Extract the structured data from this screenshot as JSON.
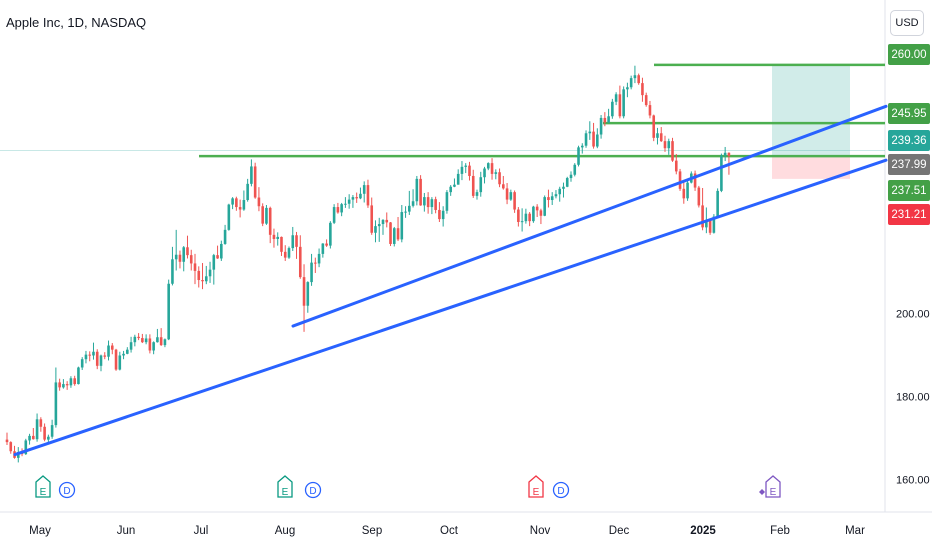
{
  "header": {
    "title": "Apple Inc, 1D, NASDAQ",
    "currency": "USD"
  },
  "colors": {
    "up": "#26a69a",
    "down": "#ef5350",
    "trendline": "#2962ff",
    "level": "#4caf50",
    "profit_zone": "#b2dfdb",
    "loss_zone": "#ffcdd2"
  },
  "chart_data": {
    "type": "candlestick",
    "ylim": [
      156,
      266
    ],
    "grid": false,
    "x_ticks": [
      "May",
      "Jun",
      "Jul",
      "Aug",
      "Sep",
      "Oct",
      "Nov",
      "Dec",
      "2025",
      "Feb",
      "Mar"
    ],
    "y_ticks": [
      "160.00",
      "180.00",
      "200.00"
    ],
    "price_labels": [
      "260.00",
      "245.95",
      "239.36",
      "237.99",
      "237.51",
      "231.21"
    ],
    "horizontal_levels": [
      {
        "value": 260.0,
        "from": "Dec",
        "to": "Feb"
      },
      {
        "value": 245.95,
        "from": "Dec",
        "to": "Feb"
      },
      {
        "value": 237.99,
        "from": "Jul",
        "to": "Feb"
      }
    ],
    "trend_lines": [
      {
        "from": {
          "date": "Apr 19",
          "price": 166
        },
        "to": {
          "date": "Mar",
          "price": 237
        }
      },
      {
        "from": {
          "date": "Aug 5",
          "price": 197
        },
        "to": {
          "date": "Mar",
          "price": 250
        }
      }
    ],
    "position_zones": {
      "entry": 237.99,
      "target": 260.0,
      "stop": 232.5
    },
    "events": [
      "E",
      "D",
      "E",
      "D",
      "E",
      "D",
      "E"
    ],
    "candles": [
      [
        169.6,
        171.3,
        168.3,
        169.0
      ],
      [
        169.0,
        169.2,
        166.2,
        166.8
      ],
      [
        166.8,
        168.1,
        165.0,
        165.2
      ],
      [
        165.2,
        167.8,
        164.1,
        166.6
      ],
      [
        166.6,
        167.5,
        165.6,
        166.1
      ],
      [
        166.1,
        169.8,
        165.9,
        169.4
      ],
      [
        169.4,
        171.0,
        168.4,
        170.5
      ],
      [
        170.5,
        172.4,
        169.6,
        169.7
      ],
      [
        169.7,
        175.9,
        169.1,
        174.5
      ],
      [
        174.5,
        175.0,
        171.5,
        172.7
      ],
      [
        172.7,
        173.5,
        169.2,
        169.6
      ],
      [
        169.6,
        170.8,
        168.7,
        170.3
      ],
      [
        170.3,
        174.4,
        169.8,
        173.1
      ],
      [
        173.1,
        187.0,
        172.5,
        183.4
      ],
      [
        183.4,
        184.3,
        181.4,
        182.2
      ],
      [
        182.2,
        184.2,
        181.9,
        183.0
      ],
      [
        183.0,
        183.7,
        181.6,
        182.7
      ],
      [
        182.7,
        184.9,
        182.1,
        184.4
      ],
      [
        184.4,
        185.0,
        182.6,
        183.0
      ],
      [
        183.0,
        187.2,
        182.9,
        187.0
      ],
      [
        187.0,
        189.5,
        186.4,
        189.0
      ],
      [
        189.0,
        191.0,
        188.0,
        190.1
      ],
      [
        190.1,
        190.9,
        188.5,
        189.9
      ],
      [
        189.9,
        193.0,
        188.9,
        190.8
      ],
      [
        190.8,
        191.4,
        186.6,
        187.4
      ],
      [
        187.4,
        190.1,
        186.1,
        189.9
      ],
      [
        189.9,
        190.7,
        189.0,
        189.6
      ],
      [
        189.6,
        193.5,
        188.7,
        192.3
      ],
      [
        192.3,
        192.9,
        190.2,
        191.3
      ],
      [
        191.3,
        191.5,
        186.2,
        186.5
      ],
      [
        186.5,
        190.8,
        186.3,
        189.9
      ],
      [
        189.9,
        191.0,
        189.0,
        190.3
      ],
      [
        190.3,
        191.9,
        190.2,
        191.3
      ],
      [
        191.3,
        194.4,
        190.6,
        193.1
      ],
      [
        193.1,
        194.9,
        192.1,
        194.4
      ],
      [
        194.4,
        195.3,
        193.6,
        194.1
      ],
      [
        194.1,
        195.1,
        192.9,
        193.1
      ],
      [
        193.1,
        195.0,
        192.6,
        194.0
      ],
      [
        194.0,
        195.0,
        190.4,
        191.1
      ],
      [
        191.1,
        193.3,
        190.2,
        193.1
      ],
      [
        193.1,
        196.3,
        193.0,
        194.3
      ],
      [
        194.3,
        196.5,
        192.2,
        192.4
      ],
      [
        192.4,
        194.0,
        191.9,
        193.8
      ],
      [
        193.8,
        208.2,
        193.6,
        207.2
      ],
      [
        207.2,
        216.1,
        206.8,
        213.1
      ],
      [
        213.1,
        220.2,
        210.4,
        214.2
      ],
      [
        214.2,
        215.2,
        210.9,
        212.5
      ],
      [
        212.5,
        216.3,
        210.2,
        216.0
      ],
      [
        216.0,
        218.8,
        213.3,
        214.1
      ],
      [
        214.1,
        215.4,
        210.4,
        212.1
      ],
      [
        212.1,
        214.4,
        207.1,
        210.3
      ],
      [
        210.3,
        211.4,
        206.3,
        208.1
      ],
      [
        208.1,
        212.2,
        205.9,
        207.8
      ],
      [
        207.8,
        211.5,
        207.1,
        209.0
      ],
      [
        209.0,
        212.5,
        207.4,
        210.6
      ],
      [
        210.6,
        214.4,
        207.0,
        214.1
      ],
      [
        214.1,
        216.4,
        213.2,
        213.3
      ],
      [
        213.3,
        217.6,
        212.7,
        216.8
      ],
      [
        216.8,
        221.4,
        216.6,
        220.2
      ],
      [
        220.2,
        226.5,
        220.0,
        226.3
      ],
      [
        226.3,
        228.1,
        225.2,
        227.8
      ],
      [
        227.8,
        228.2,
        224.8,
        225.7
      ],
      [
        225.7,
        227.5,
        223.2,
        225.1
      ],
      [
        225.1,
        229.7,
        224.8,
        227.4
      ],
      [
        227.4,
        232.5,
        227.0,
        231.3
      ],
      [
        231.3,
        237.2,
        230.7,
        235.5
      ],
      [
        235.5,
        236.4,
        227.7,
        228.0
      ],
      [
        228.0,
        230.5,
        224.7,
        225.9
      ],
      [
        225.9,
        226.6,
        221.1,
        221.7
      ],
      [
        221.7,
        226.2,
        221.4,
        225.5
      ],
      [
        225.5,
        225.8,
        217.0,
        219.0
      ],
      [
        219.0,
        220.5,
        215.9,
        218.0
      ],
      [
        218.0,
        219.6,
        216.4,
        218.5
      ],
      [
        218.5,
        218.6,
        213.9,
        214.9
      ],
      [
        214.9,
        216.5,
        212.7,
        213.5
      ],
      [
        213.5,
        216.2,
        213.2,
        215.8
      ],
      [
        215.8,
        220.9,
        215.1,
        218.9
      ],
      [
        218.9,
        219.7,
        213.2,
        216.1
      ],
      [
        216.1,
        218.9,
        208.4,
        208.8
      ],
      [
        208.8,
        211.9,
        195.6,
        201.9
      ],
      [
        201.9,
        207.8,
        200.2,
        207.6
      ],
      [
        207.6,
        214.4,
        206.7,
        212.3
      ],
      [
        212.3,
        213.5,
        209.8,
        212.1
      ],
      [
        212.1,
        215.7,
        211.2,
        214.4
      ],
      [
        214.4,
        217.0,
        213.5,
        216.9
      ],
      [
        216.9,
        217.9,
        216.1,
        216.4
      ],
      [
        216.4,
        222.3,
        215.7,
        221.9
      ],
      [
        221.9,
        226.4,
        221.6,
        225.7
      ],
      [
        225.7,
        226.7,
        224.1,
        224.4
      ],
      [
        224.4,
        226.7,
        223.5,
        226.4
      ],
      [
        226.4,
        228.1,
        225.5,
        226.5
      ],
      [
        226.5,
        228.8,
        225.3,
        227.5
      ],
      [
        227.5,
        228.6,
        225.5,
        228.1
      ],
      [
        228.1,
        229.2,
        226.7,
        227.8
      ],
      [
        227.8,
        230.4,
        227.6,
        228.9
      ],
      [
        228.9,
        231.9,
        226.8,
        231.0
      ],
      [
        231.0,
        232.3,
        225.5,
        226.1
      ],
      [
        226.1,
        228.0,
        219.0,
        219.5
      ],
      [
        219.5,
        222.5,
        217.2,
        221.1
      ],
      [
        221.1,
        223.1,
        217.3,
        221.6
      ],
      [
        221.6,
        222.8,
        219.0,
        222.6
      ],
      [
        222.6,
        224.4,
        220.8,
        222.0
      ],
      [
        222.0,
        222.1,
        216.3,
        216.8
      ],
      [
        216.8,
        220.9,
        216.2,
        220.6
      ],
      [
        220.6,
        223.3,
        217.5,
        217.9
      ],
      [
        217.9,
        226.2,
        217.2,
        224.5
      ],
      [
        224.5,
        225.9,
        223.1,
        224.6
      ],
      [
        224.6,
        229.6,
        223.8,
        226.0
      ],
      [
        226.0,
        230.0,
        225.6,
        227.1
      ],
      [
        227.1,
        233.2,
        226.1,
        232.5
      ],
      [
        232.5,
        233.4,
        226.0,
        226.1
      ],
      [
        226.1,
        229.1,
        224.6,
        228.1
      ],
      [
        228.1,
        229.3,
        224.1,
        225.7
      ],
      [
        225.7,
        228.1,
        224.0,
        227.6
      ],
      [
        227.6,
        228.2,
        224.2,
        225.0
      ],
      [
        225.0,
        226.9,
        222.1,
        222.8
      ],
      [
        222.8,
        225.9,
        221.0,
        224.8
      ],
      [
        224.8,
        229.8,
        224.1,
        229.3
      ],
      [
        229.3,
        231.0,
        228.4,
        230.6
      ],
      [
        230.6,
        232.6,
        230.5,
        231.1
      ],
      [
        231.1,
        234.8,
        231.1,
        233.7
      ],
      [
        233.7,
        236.8,
        232.2,
        235.4
      ],
      [
        235.4,
        236.3,
        233.9,
        235.7
      ],
      [
        235.7,
        236.6,
        232.1,
        233.2
      ],
      [
        233.2,
        234.7,
        227.9,
        228.4
      ],
      [
        228.4,
        229.9,
        227.5,
        229.3
      ],
      [
        229.3,
        234.2,
        228.2,
        232.9
      ],
      [
        232.9,
        235.4,
        231.4,
        235.0
      ],
      [
        235.0,
        236.5,
        234.6,
        236.3
      ],
      [
        236.3,
        237.5,
        232.3,
        233.7
      ],
      [
        233.7,
        234.8,
        232.4,
        234.1
      ],
      [
        234.1,
        235.0,
        230.5,
        231.2
      ],
      [
        231.2,
        233.2,
        229.9,
        230.2
      ],
      [
        230.2,
        231.5,
        226.4,
        227.5
      ],
      [
        227.5,
        229.9,
        227.2,
        229.3
      ],
      [
        229.3,
        229.7,
        224.3,
        225.1
      ],
      [
        225.1,
        225.7,
        221.0,
        222.1
      ],
      [
        222.1,
        225.4,
        219.8,
        222.3
      ],
      [
        222.3,
        225.3,
        221.7,
        224.1
      ],
      [
        224.1,
        224.5,
        221.1,
        222.3
      ],
      [
        222.3,
        226.0,
        221.9,
        225.8
      ],
      [
        225.8,
        226.4,
        223.3,
        224.9
      ],
      [
        224.9,
        225.3,
        221.6,
        223.6
      ],
      [
        223.6,
        228.5,
        223.5,
        228.1
      ],
      [
        228.1,
        229.9,
        225.6,
        227.4
      ],
      [
        227.4,
        229.3,
        226.2,
        228.3
      ],
      [
        228.3,
        229.8,
        227.8,
        228.8
      ],
      [
        228.8,
        230.6,
        227.0,
        230.1
      ],
      [
        230.1,
        231.6,
        228.0,
        230.6
      ],
      [
        230.6,
        233.0,
        230.5,
        232.7
      ],
      [
        232.7,
        234.3,
        231.8,
        233.5
      ],
      [
        233.5,
        236.3,
        233.1,
        235.9
      ],
      [
        235.9,
        240.5,
        235.5,
        240.1
      ],
      [
        240.1,
        241.1,
        238.6,
        240.5
      ],
      [
        240.5,
        244.2,
        240.0,
        243.5
      ],
      [
        243.5,
        246.4,
        241.9,
        243.9
      ],
      [
        243.9,
        246.0,
        239.8,
        240.3
      ],
      [
        240.3,
        244.7,
        239.9,
        243.2
      ],
      [
        243.2,
        247.9,
        242.2,
        247.2
      ],
      [
        247.2,
        248.6,
        245.2,
        246.1
      ],
      [
        246.1,
        249.4,
        245.9,
        247.6
      ],
      [
        247.6,
        251.8,
        247.0,
        251.1
      ],
      [
        251.1,
        253.4,
        250.3,
        252.9
      ],
      [
        252.9,
        255.0,
        247.1,
        247.6
      ],
      [
        247.6,
        254.8,
        247.1,
        254.1
      ],
      [
        254.1,
        255.7,
        252.2,
        254.6
      ],
      [
        254.6,
        257.4,
        254.1,
        256.8
      ],
      [
        256.8,
        259.8,
        255.6,
        257.5
      ],
      [
        257.5,
        257.9,
        255.2,
        255.6
      ],
      [
        255.6,
        256.9,
        251.1,
        252.7
      ],
      [
        252.7,
        253.3,
        249.9,
        250.3
      ],
      [
        250.3,
        251.3,
        247.1,
        247.8
      ],
      [
        247.8,
        248.0,
        241.6,
        242.4
      ],
      [
        242.4,
        244.8,
        240.8,
        243.5
      ],
      [
        243.5,
        245.0,
        241.4,
        241.6
      ],
      [
        241.6,
        242.9,
        239.0,
        239.9
      ],
      [
        239.9,
        242.2,
        238.3,
        241.6
      ],
      [
        241.6,
        242.4,
        236.6,
        236.9
      ],
      [
        236.9,
        238.5,
        233.6,
        234.3
      ],
      [
        234.3,
        234.9,
        229.6,
        230.1
      ],
      [
        230.1,
        231.8,
        226.5,
        227.8
      ],
      [
        227.8,
        232.1,
        227.2,
        231.6
      ],
      [
        231.6,
        234.3,
        231.4,
        233.8
      ],
      [
        233.8,
        234.5,
        229.6,
        230.4
      ],
      [
        230.4,
        230.8,
        225.6,
        226.1
      ],
      [
        226.1,
        230.3,
        220.1,
        220.8
      ],
      [
        220.8,
        225.6,
        219.4,
        222.6
      ],
      [
        222.6,
        222.8,
        219.0,
        219.5
      ],
      [
        219.5,
        224.0,
        219.3,
        223.4
      ],
      [
        223.4,
        230.2,
        223.0,
        229.6
      ],
      [
        229.6,
        238.6,
        229.3,
        238.1
      ],
      [
        238.1,
        240.2,
        236.8,
        238.8
      ],
      [
        238.8,
        238.9,
        233.5,
        237.99
      ]
    ]
  }
}
